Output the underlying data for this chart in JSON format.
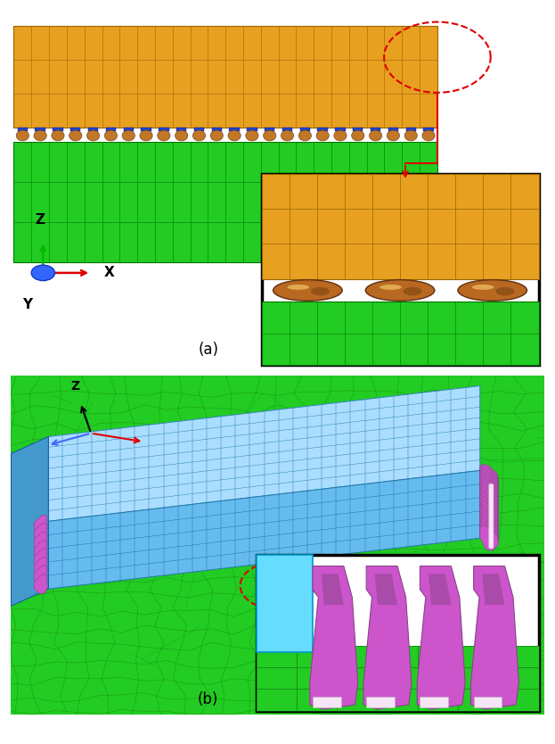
{
  "fig_width": 6.23,
  "fig_height": 8.34,
  "bg": "#ffffff",
  "green": "#22cc22",
  "green_edge": "#007700",
  "green_dark": "#116611",
  "orange": "#e8a020",
  "orange_edge": "#996600",
  "brown_ball": "#c07828",
  "brown_edge": "#603010",
  "blue_pad": "#2244cc",
  "cyan_pkg": "#88ddff",
  "cyan_edge": "#0088bb",
  "light_blue": "#aaddff",
  "mid_blue": "#66bbee",
  "dark_blue": "#4499cc",
  "purple": "#cc55cc",
  "purple_dark": "#884488",
  "white": "#ffffff",
  "red": "#dd0000",
  "black": "#000000",
  "label_a": "(a)",
  "label_b": "(b)"
}
